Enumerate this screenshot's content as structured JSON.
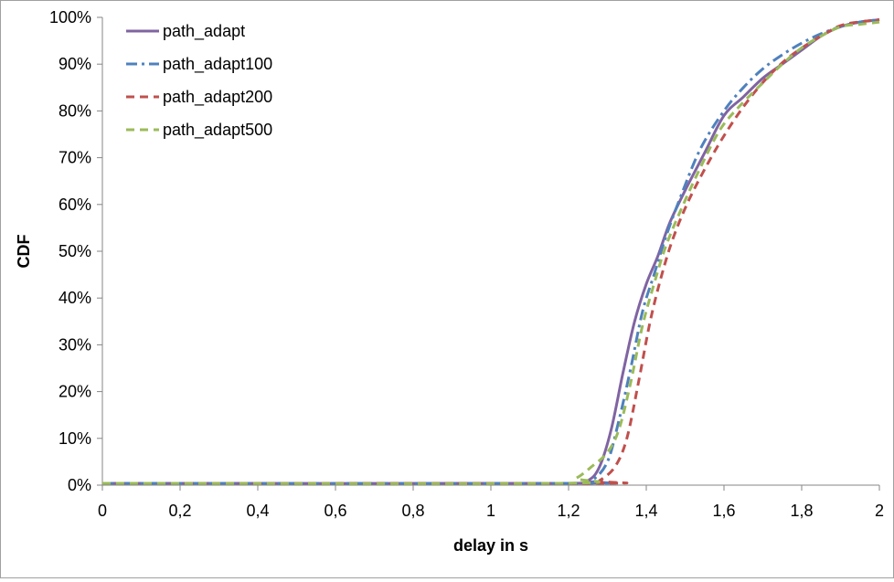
{
  "chart_data": {
    "type": "line",
    "title": "",
    "xlabel": "delay in s",
    "ylabel": "CDF",
    "xlim": [
      0,
      2
    ],
    "ylim": [
      0,
      1
    ],
    "grid": false,
    "legend_position": "top-left",
    "x_tick_labels": [
      "0",
      "0,2",
      "0,4",
      "0,6",
      "0,8",
      "1",
      "1,2",
      "1,4",
      "1,6",
      "1,8",
      "2"
    ],
    "y_tick_labels": [
      "0%",
      "10%",
      "20%",
      "30%",
      "40%",
      "50%",
      "60%",
      "70%",
      "80%",
      "90%",
      "100%"
    ],
    "series": [
      {
        "name": "path_adapt",
        "color": "#8064A2",
        "dash": "solid",
        "points": [
          [
            0,
            0.004
          ],
          [
            1.2,
            0.004
          ],
          [
            1.25,
            0.01
          ],
          [
            1.28,
            0.04
          ],
          [
            1.31,
            0.12
          ],
          [
            1.34,
            0.24
          ],
          [
            1.37,
            0.35
          ],
          [
            1.4,
            0.43
          ],
          [
            1.43,
            0.49
          ],
          [
            1.46,
            0.56
          ],
          [
            1.5,
            0.63
          ],
          [
            1.55,
            0.71
          ],
          [
            1.6,
            0.79
          ],
          [
            1.65,
            0.83
          ],
          [
            1.7,
            0.87
          ],
          [
            1.75,
            0.9
          ],
          [
            1.8,
            0.93
          ],
          [
            1.85,
            0.96
          ],
          [
            1.9,
            0.98
          ],
          [
            1.95,
            0.99
          ],
          [
            2.0,
            0.995
          ]
        ]
      },
      {
        "name": "path_adapt100",
        "color": "#4F81BD",
        "dash": "dashdot",
        "points": [
          [
            0,
            0.004
          ],
          [
            1.22,
            0.004
          ],
          [
            1.26,
            0.01
          ],
          [
            1.3,
            0.05
          ],
          [
            1.33,
            0.14
          ],
          [
            1.36,
            0.25
          ],
          [
            1.39,
            0.37
          ],
          [
            1.42,
            0.45
          ],
          [
            1.45,
            0.53
          ],
          [
            1.49,
            0.62
          ],
          [
            1.54,
            0.72
          ],
          [
            1.6,
            0.8
          ],
          [
            1.65,
            0.85
          ],
          [
            1.7,
            0.89
          ],
          [
            1.75,
            0.92
          ],
          [
            1.8,
            0.945
          ],
          [
            1.85,
            0.965
          ],
          [
            1.9,
            0.98
          ],
          [
            1.95,
            0.99
          ],
          [
            2.0,
            0.995
          ]
        ]
      },
      {
        "name": "path_adapt200",
        "color": "#C0504D",
        "dash": "dash",
        "points": [
          [
            0,
            0.004
          ],
          [
            1.25,
            0.004
          ],
          [
            1.28,
            0.01
          ],
          [
            1.32,
            0.04
          ],
          [
            1.35,
            0.1
          ],
          [
            1.38,
            0.22
          ],
          [
            1.41,
            0.35
          ],
          [
            1.44,
            0.45
          ],
          [
            1.47,
            0.53
          ],
          [
            1.51,
            0.61
          ],
          [
            1.56,
            0.69
          ],
          [
            1.61,
            0.76
          ],
          [
            1.66,
            0.82
          ],
          [
            1.71,
            0.87
          ],
          [
            1.76,
            0.91
          ],
          [
            1.81,
            0.94
          ],
          [
            1.86,
            0.965
          ],
          [
            1.91,
            0.985
          ],
          [
            2.0,
            0.995
          ]
        ]
      },
      {
        "name": "path_adapt500",
        "color": "#9BBB59",
        "dash": "dash",
        "points": [
          [
            0,
            0.004
          ],
          [
            1.18,
            0.004
          ],
          [
            1.22,
            0.015
          ],
          [
            1.26,
            0.04
          ],
          [
            1.3,
            0.07
          ],
          [
            1.33,
            0.12
          ],
          [
            1.36,
            0.22
          ],
          [
            1.39,
            0.34
          ],
          [
            1.42,
            0.43
          ],
          [
            1.45,
            0.51
          ],
          [
            1.49,
            0.59
          ],
          [
            1.54,
            0.68
          ],
          [
            1.59,
            0.76
          ],
          [
            1.64,
            0.81
          ],
          [
            1.7,
            0.86
          ],
          [
            1.75,
            0.9
          ],
          [
            1.8,
            0.935
          ],
          [
            1.85,
            0.96
          ],
          [
            1.9,
            0.98
          ],
          [
            1.95,
            0.985
          ],
          [
            2.0,
            0.99
          ]
        ]
      }
    ]
  }
}
